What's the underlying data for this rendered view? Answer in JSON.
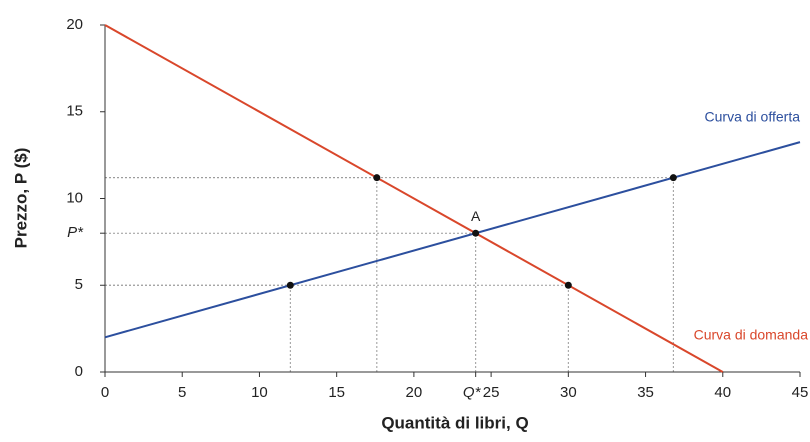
{
  "chart_data": {
    "type": "line",
    "xlabel": "Quantità di libri, Q",
    "ylabel": "Prezzo, P ($)",
    "xlim": [
      0,
      45
    ],
    "ylim": [
      0,
      20
    ],
    "xticks": [
      0,
      5,
      10,
      15,
      20,
      {
        "value": 24,
        "label": "Q*"
      },
      25,
      30,
      35,
      40,
      45
    ],
    "yticks": [
      0,
      5,
      {
        "value": 8,
        "label": "P*"
      },
      10,
      15,
      20
    ],
    "series": [
      {
        "name": "Curva di offerta",
        "color": "#2c4f9e",
        "x": [
          0,
          45
        ],
        "values": [
          2,
          13.25
        ]
      },
      {
        "name": "Curva di domanda",
        "color": "#d9472b",
        "x": [
          0,
          40
        ],
        "values": [
          20,
          0
        ]
      }
    ],
    "points": {
      "x": [
        12,
        30,
        24,
        17.6,
        36.8
      ],
      "y": [
        5,
        5,
        8,
        11.2,
        11.2
      ]
    },
    "annotation": {
      "text": "A",
      "x": 24,
      "y": 8
    }
  }
}
